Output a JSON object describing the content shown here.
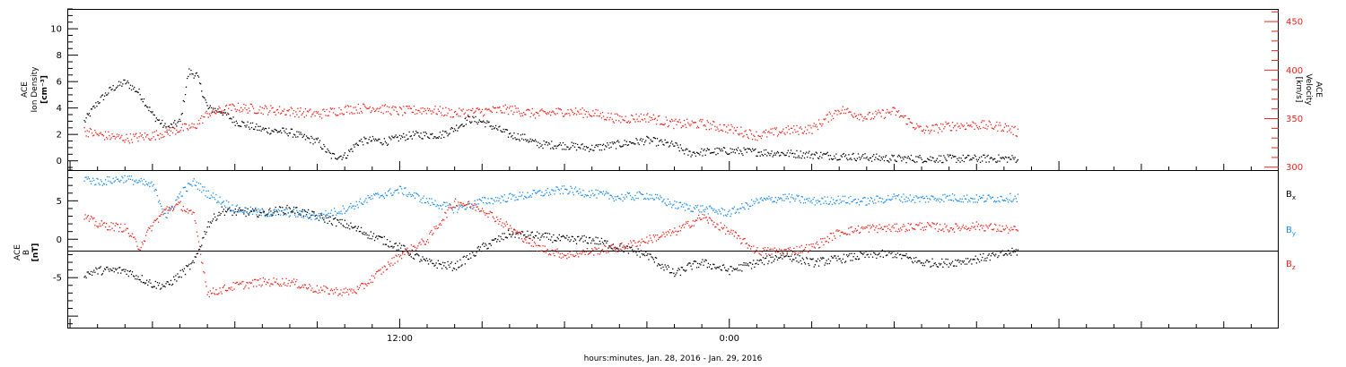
{
  "colors": {
    "black": "#000000",
    "red": "#e8231c",
    "blue": "#1a8be8"
  },
  "xaxis": {
    "label": "hours:minutes, Jan. 28, 2016 - Jan. 29, 2016",
    "range_hours": [
      -0.1,
      44.0
    ],
    "major_ticks": [
      {
        "hour": 12,
        "label": "12:00"
      },
      {
        "hour": 24,
        "label": "0:00"
      }
    ]
  },
  "chart_data": [
    {
      "type": "scatter",
      "title": "",
      "ylabel_left": {
        "l1": "ACE",
        "l2": "Ion Density",
        "l3": "[cm⁻³]"
      },
      "ylabel_right": {
        "l1": "ACE",
        "l2": "Velocity",
        "l3": "[km/s]"
      },
      "ylim_left": [
        -0.7,
        11.5
      ],
      "ylim_right": [
        297,
        463
      ],
      "yticks_left": [
        0,
        2,
        4,
        6,
        8,
        10
      ],
      "yticks_right": [
        300,
        350,
        400,
        450
      ],
      "grid": false,
      "series": [
        {
          "axis": "left",
          "color": "#000000",
          "points": [
            [
              0.5,
              3.0
            ],
            [
              1.0,
              4.5
            ],
            [
              1.5,
              5.5
            ],
            [
              2.0,
              6.0
            ],
            [
              2.5,
              5.2
            ],
            [
              3.0,
              3.5
            ],
            [
              3.5,
              2.5
            ],
            [
              4.0,
              3.0
            ],
            [
              4.3,
              6.8
            ],
            [
              4.6,
              6.5
            ],
            [
              5.0,
              4.0
            ],
            [
              5.5,
              3.8
            ],
            [
              6.0,
              3.0
            ],
            [
              7.0,
              2.4
            ],
            [
              8.0,
              2.2
            ],
            [
              8.5,
              1.8
            ],
            [
              9.0,
              1.5
            ],
            [
              9.5,
              0.4
            ],
            [
              10.0,
              0.4
            ],
            [
              10.5,
              1.5
            ],
            [
              11.0,
              1.6
            ],
            [
              11.5,
              1.5
            ],
            [
              12.0,
              1.8
            ],
            [
              12.5,
              2.0
            ],
            [
              13.0,
              2.0
            ],
            [
              13.5,
              2.0
            ],
            [
              14.0,
              2.5
            ],
            [
              14.5,
              3.2
            ],
            [
              15.0,
              3.0
            ],
            [
              15.5,
              2.5
            ],
            [
              16.0,
              2.0
            ],
            [
              16.5,
              1.8
            ],
            [
              17.0,
              1.3
            ],
            [
              18.0,
              1.2
            ],
            [
              19.0,
              1.0
            ],
            [
              20.0,
              1.3
            ],
            [
              21.0,
              1.6
            ],
            [
              22.0,
              1.2
            ],
            [
              22.5,
              0.6
            ],
            [
              23.0,
              0.7
            ],
            [
              24.0,
              0.8
            ],
            [
              25.0,
              0.7
            ],
            [
              26.0,
              0.6
            ],
            [
              27.0,
              0.5
            ],
            [
              28.0,
              0.4
            ],
            [
              29.0,
              0.3
            ],
            [
              30.0,
              0.2
            ],
            [
              31.0,
              0.2
            ],
            [
              34.5,
              0.2
            ]
          ]
        },
        {
          "axis": "right",
          "color": "#e8231c",
          "points": [
            [
              0.5,
              338
            ],
            [
              1.0,
              334
            ],
            [
              2.0,
              330
            ],
            [
              3.0,
              333
            ],
            [
              4.0,
              340
            ],
            [
              4.5,
              342
            ],
            [
              5.0,
              356
            ],
            [
              6.0,
              362
            ],
            [
              7.0,
              360
            ],
            [
              8.0,
              358
            ],
            [
              9.0,
              355
            ],
            [
              10.0,
              360
            ],
            [
              11.0,
              362
            ],
            [
              12.0,
              358
            ],
            [
              13.0,
              360
            ],
            [
              14.0,
              356
            ],
            [
              15.0,
              358
            ],
            [
              16.0,
              360
            ],
            [
              17.0,
              355
            ],
            [
              18.0,
              358
            ],
            [
              19.0,
              356
            ],
            [
              20.0,
              350
            ],
            [
              21.0,
              352
            ],
            [
              22.0,
              345
            ],
            [
              23.0,
              345
            ],
            [
              24.0,
              340
            ],
            [
              25.0,
              333
            ],
            [
              26.0,
              338
            ],
            [
              27.0,
              340
            ],
            [
              28.0,
              360
            ],
            [
              29.0,
              352
            ],
            [
              30.0,
              358
            ],
            [
              31.0,
              338
            ],
            [
              32.0,
              343
            ],
            [
              33.0,
              344
            ],
            [
              34.0,
              342
            ],
            [
              34.5,
              336
            ]
          ]
        }
      ]
    },
    {
      "type": "scatter",
      "title": "",
      "ylabel_left": {
        "l1": "ACE",
        "l2": "B",
        "l3": "[nT]"
      },
      "ylim": [
        -11.5,
        9.0
      ],
      "yticks": [
        -5,
        0,
        5
      ],
      "zero_line": true,
      "grid": false,
      "series": [
        {
          "name": "B",
          "sub": "x",
          "color": "#000000",
          "points": [
            [
              0.5,
              -4.5
            ],
            [
              1.0,
              -4.0
            ],
            [
              2.0,
              -4.0
            ],
            [
              3.0,
              -5.8
            ],
            [
              3.5,
              -6.0
            ],
            [
              4.0,
              -4.5
            ],
            [
              4.5,
              -3.0
            ],
            [
              5.0,
              2.0
            ],
            [
              5.5,
              3.8
            ],
            [
              6.0,
              3.6
            ],
            [
              7.0,
              3.5
            ],
            [
              8.0,
              4.0
            ],
            [
              9.0,
              3.0
            ],
            [
              10.0,
              2.0
            ],
            [
              11.0,
              0.5
            ],
            [
              12.0,
              -1.0
            ],
            [
              13.0,
              -3.0
            ],
            [
              14.0,
              -3.5
            ],
            [
              15.0,
              -1.0
            ],
            [
              16.0,
              0.8
            ],
            [
              17.0,
              0.5
            ],
            [
              18.0,
              0.0
            ],
            [
              19.0,
              0.0
            ],
            [
              20.0,
              -1.0
            ],
            [
              21.0,
              -2.0
            ],
            [
              22.0,
              -4.5
            ],
            [
              22.5,
              -3.5
            ],
            [
              23.0,
              -3.0
            ],
            [
              24.0,
              -4.0
            ],
            [
              25.0,
              -3.0
            ],
            [
              26.0,
              -2.0
            ],
            [
              27.0,
              -3.0
            ],
            [
              28.0,
              -2.5
            ],
            [
              29.0,
              -2.0
            ],
            [
              30.0,
              -1.8
            ],
            [
              31.0,
              -3.0
            ],
            [
              32.0,
              -3.0
            ],
            [
              33.0,
              -2.5
            ],
            [
              34.5,
              -1.5
            ]
          ]
        },
        {
          "name": "B",
          "sub": "y",
          "color": "#1a8be8",
          "points": [
            [
              0.5,
              8.0
            ],
            [
              1.0,
              7.5
            ],
            [
              2.0,
              8.0
            ],
            [
              3.0,
              7.0
            ],
            [
              3.5,
              3.0
            ],
            [
              4.0,
              6.0
            ],
            [
              4.5,
              7.5
            ],
            [
              5.0,
              6.0
            ],
            [
              6.0,
              4.0
            ],
            [
              7.0,
              3.5
            ],
            [
              8.0,
              3.5
            ],
            [
              9.0,
              3.0
            ],
            [
              10.0,
              4.0
            ],
            [
              11.0,
              5.5
            ],
            [
              12.0,
              6.5
            ],
            [
              13.0,
              5.0
            ],
            [
              14.0,
              4.0
            ],
            [
              15.0,
              5.0
            ],
            [
              16.0,
              5.5
            ],
            [
              17.0,
              6.0
            ],
            [
              18.0,
              6.5
            ],
            [
              19.0,
              6.0
            ],
            [
              20.0,
              5.5
            ],
            [
              21.0,
              5.8
            ],
            [
              22.0,
              4.5
            ],
            [
              23.0,
              4.0
            ],
            [
              24.0,
              3.5
            ],
            [
              25.0,
              5.0
            ],
            [
              26.0,
              5.5
            ],
            [
              27.0,
              5.0
            ],
            [
              28.0,
              5.2
            ],
            [
              29.0,
              5.0
            ],
            [
              30.0,
              5.5
            ],
            [
              31.0,
              5.3
            ],
            [
              32.0,
              5.5
            ],
            [
              33.0,
              5.3
            ],
            [
              34.5,
              5.5
            ]
          ]
        },
        {
          "name": "B",
          "sub": "z",
          "color": "#e8231c",
          "points": [
            [
              0.5,
              3.0
            ],
            [
              1.0,
              2.0
            ],
            [
              2.0,
              1.5
            ],
            [
              2.5,
              -1.0
            ],
            [
              3.0,
              2.0
            ],
            [
              3.5,
              4.0
            ],
            [
              4.0,
              4.5
            ],
            [
              4.5,
              3.0
            ],
            [
              5.0,
              -7.0
            ],
            [
              6.0,
              -6.0
            ],
            [
              7.0,
              -5.5
            ],
            [
              8.0,
              -5.5
            ],
            [
              9.0,
              -6.5
            ],
            [
              10.0,
              -6.8
            ],
            [
              10.5,
              -6.5
            ],
            [
              11.0,
              -5.0
            ],
            [
              12.0,
              -2.0
            ],
            [
              13.0,
              0.0
            ],
            [
              14.0,
              5.0
            ],
            [
              15.0,
              4.0
            ],
            [
              16.0,
              1.5
            ],
            [
              17.0,
              -1.0
            ],
            [
              18.0,
              -2.0
            ],
            [
              19.0,
              -1.5
            ],
            [
              20.0,
              -1.0
            ],
            [
              21.0,
              0.0
            ],
            [
              22.0,
              1.0
            ],
            [
              23.0,
              3.0
            ],
            [
              24.0,
              1.0
            ],
            [
              25.0,
              -1.5
            ],
            [
              26.0,
              -1.5
            ],
            [
              27.0,
              -1.0
            ],
            [
              28.0,
              1.0
            ],
            [
              29.0,
              1.5
            ],
            [
              30.0,
              1.5
            ],
            [
              31.0,
              1.8
            ],
            [
              32.0,
              1.5
            ],
            [
              33.0,
              1.8
            ],
            [
              34.5,
              1.2
            ]
          ]
        }
      ]
    }
  ]
}
